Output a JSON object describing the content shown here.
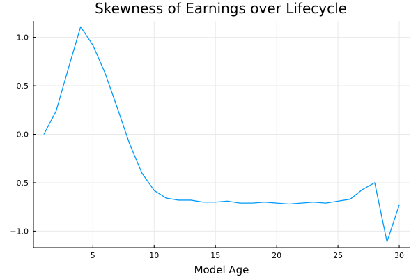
{
  "chart_data": {
    "type": "line",
    "title": "Skewness of Earnings over Lifecycle",
    "xlabel": "Model Age",
    "ylabel": "",
    "xlim": [
      0.15,
      30.85
    ],
    "ylim": [
      -1.17,
      1.17
    ],
    "xticks": [
      5,
      10,
      15,
      20,
      25,
      30
    ],
    "xtick_labels": [
      "5",
      "10",
      "15",
      "20",
      "25",
      "30"
    ],
    "yticks": [
      -1.0,
      -0.5,
      0.0,
      0.5,
      1.0
    ],
    "ytick_labels": [
      "−1.0",
      "−0.5",
      "0.0",
      "0.5",
      "1.0"
    ],
    "grid": true,
    "legend": "none",
    "colors": {
      "series": "#009af9",
      "grid": "#e9e9e9",
      "axis": "#000000"
    },
    "x": [
      1,
      2,
      3,
      4,
      5,
      6,
      7,
      8,
      9,
      10,
      11,
      12,
      13,
      14,
      15,
      16,
      17,
      18,
      19,
      20,
      21,
      22,
      23,
      24,
      25,
      26,
      27,
      28,
      29,
      30
    ],
    "series": [
      {
        "values": [
          0.0,
          0.24,
          0.68,
          1.11,
          0.92,
          0.63,
          0.27,
          -0.1,
          -0.4,
          -0.58,
          -0.66,
          -0.68,
          -0.68,
          -0.7,
          -0.7,
          -0.69,
          -0.71,
          -0.71,
          -0.7,
          -0.71,
          -0.72,
          -0.71,
          -0.7,
          -0.71,
          -0.69,
          -0.67,
          -0.57,
          -0.5,
          -1.11,
          -0.73
        ]
      }
    ]
  }
}
